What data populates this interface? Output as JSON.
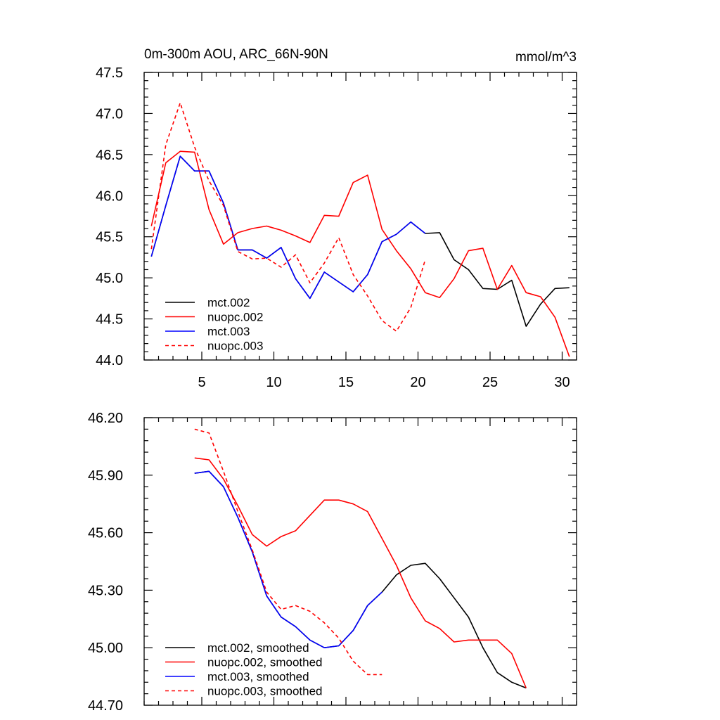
{
  "chart_data": [
    {
      "type": "line",
      "title": "0m-300m AOU, ARC_66N-90N",
      "units": "mmol/m^3",
      "xlim": [
        1,
        31
      ],
      "ylim": [
        44.0,
        47.5
      ],
      "x_major_ticks": [
        5,
        10,
        15,
        20,
        25,
        30
      ],
      "x_tick_labels": [
        "5",
        "10",
        "15",
        "20",
        "25",
        "30"
      ],
      "y_major_ticks": [
        44.0,
        44.5,
        45.0,
        45.5,
        46.0,
        46.5,
        47.0,
        47.5
      ],
      "y_tick_labels": [
        "44.0",
        "44.5",
        "45.0",
        "45.5",
        "46.0",
        "46.5",
        "47.0",
        "47.5"
      ],
      "legend_position": "bottom-left",
      "series": [
        {
          "name": "mct.002",
          "color": "#000000",
          "dash": "solid",
          "x": [
            1.5,
            2.5,
            3.5,
            4.5,
            5.5,
            6.5,
            7.5,
            8.5,
            9.5,
            10.5,
            11.5,
            12.5,
            13.5,
            14.5,
            15.5,
            16.5,
            17.5,
            18.5,
            19.5,
            20.5,
            21.5,
            22.5,
            23.5,
            24.5,
            25.5,
            26.5,
            27.5,
            28.5,
            29.5,
            30.5
          ],
          "values": [
            45.26,
            45.88,
            46.48,
            46.3,
            46.3,
            45.91,
            45.34,
            45.34,
            45.24,
            45.37,
            44.99,
            44.75,
            45.07,
            44.95,
            44.83,
            45.04,
            45.44,
            45.53,
            45.68,
            45.54,
            45.55,
            45.22,
            45.1,
            44.87,
            44.86,
            44.97,
            44.41,
            44.68,
            44.87,
            44.88
          ]
        },
        {
          "name": "nuopc.002",
          "color": "#ff0000",
          "dash": "solid",
          "x": [
            1.5,
            2.5,
            3.5,
            4.5,
            5.5,
            6.5,
            7.5,
            8.5,
            9.5,
            10.5,
            11.5,
            12.5,
            13.5,
            14.5,
            15.5,
            16.5,
            17.5,
            18.5,
            19.5,
            20.5,
            21.5,
            22.5,
            23.5,
            24.5,
            25.5,
            26.5,
            27.5,
            28.5,
            29.5,
            30.5
          ],
          "values": [
            45.63,
            46.4,
            46.54,
            46.53,
            45.83,
            45.41,
            45.55,
            45.6,
            45.63,
            45.58,
            45.51,
            45.43,
            45.76,
            45.75,
            46.16,
            46.25,
            45.59,
            45.33,
            45.11,
            44.82,
            44.76,
            44.99,
            45.33,
            45.36,
            44.86,
            45.15,
            44.82,
            44.77,
            44.52,
            44.04
          ]
        },
        {
          "name": "mct.003",
          "color": "#0000ff",
          "dash": "solid",
          "x": [
            1.5,
            2.5,
            3.5,
            4.5,
            5.5,
            6.5,
            7.5,
            8.5,
            9.5,
            10.5,
            11.5,
            12.5,
            13.5,
            14.5,
            15.5,
            16.5,
            17.5,
            18.5,
            19.5,
            20.5
          ],
          "values": [
            45.26,
            45.88,
            46.48,
            46.3,
            46.3,
            45.91,
            45.34,
            45.34,
            45.24,
            45.37,
            44.99,
            44.75,
            45.07,
            44.95,
            44.83,
            45.04,
            45.44,
            45.53,
            45.68,
            45.54
          ]
        },
        {
          "name": "nuopc.003",
          "color": "#ff0000",
          "dash": "dashed",
          "x": [
            1.5,
            2.5,
            3.5,
            4.5,
            5.5,
            6.5,
            7.5,
            8.5,
            9.5,
            10.5,
            11.5,
            12.5,
            13.5,
            14.5,
            15.5,
            16.5,
            17.5,
            18.5,
            19.5,
            20.5
          ],
          "values": [
            45.35,
            46.62,
            47.13,
            46.59,
            46.18,
            45.88,
            45.32,
            45.23,
            45.24,
            45.13,
            45.28,
            44.94,
            45.18,
            45.49,
            45.04,
            44.78,
            44.48,
            44.35,
            44.64,
            45.22
          ]
        }
      ]
    },
    {
      "type": "line",
      "xlim": [
        1,
        31
      ],
      "ylim": [
        44.7,
        46.2
      ],
      "x_major_ticks": [
        5,
        10,
        15,
        20,
        25,
        30
      ],
      "y_major_ticks": [
        44.7,
        45.0,
        45.3,
        45.6,
        45.9,
        46.2
      ],
      "y_tick_labels": [
        "44.70",
        "45.00",
        "45.30",
        "45.60",
        "45.90",
        "46.20"
      ],
      "legend_position": "bottom-left",
      "series": [
        {
          "name": "mct.002, smoothed",
          "color": "#000000",
          "dash": "solid",
          "x": [
            4.5,
            5.5,
            6.5,
            7.5,
            8.5,
            9.5,
            10.5,
            11.5,
            12.5,
            13.5,
            14.5,
            15.5,
            16.5,
            17.5,
            18.5,
            19.5,
            20.5,
            21.5,
            22.5,
            23.5,
            24.5,
            25.5,
            26.5,
            27.5
          ],
          "values": [
            45.91,
            45.92,
            45.84,
            45.68,
            45.5,
            45.27,
            45.16,
            45.11,
            45.04,
            45.0,
            45.01,
            45.09,
            45.22,
            45.29,
            45.38,
            45.43,
            45.44,
            45.36,
            45.26,
            45.16,
            45.0,
            44.87,
            44.82,
            44.79
          ]
        },
        {
          "name": "nuopc.002, smoothed",
          "color": "#ff0000",
          "dash": "solid",
          "x": [
            4.5,
            5.5,
            6.5,
            7.5,
            8.5,
            9.5,
            10.5,
            11.5,
            12.5,
            13.5,
            14.5,
            15.5,
            16.5,
            17.5,
            18.5,
            19.5,
            20.5,
            21.5,
            22.5,
            23.5,
            24.5,
            25.5,
            26.5,
            27.5
          ],
          "values": [
            45.99,
            45.98,
            45.88,
            45.74,
            45.59,
            45.53,
            45.58,
            45.61,
            45.69,
            45.77,
            45.77,
            45.75,
            45.71,
            45.57,
            45.43,
            45.26,
            45.14,
            45.1,
            45.03,
            45.04,
            45.04,
            45.04,
            44.97,
            44.79
          ]
        },
        {
          "name": "mct.003, smoothed",
          "color": "#0000ff",
          "dash": "solid",
          "x": [
            4.5,
            5.5,
            6.5,
            7.5,
            8.5,
            9.5,
            10.5,
            11.5,
            12.5,
            13.5,
            14.5,
            15.5,
            16.5,
            17.5
          ],
          "values": [
            45.91,
            45.92,
            45.84,
            45.68,
            45.5,
            45.27,
            45.16,
            45.11,
            45.04,
            45.0,
            45.01,
            45.09,
            45.22,
            45.29
          ]
        },
        {
          "name": "nuopc.003, smoothed",
          "color": "#ff0000",
          "dash": "dashed",
          "x": [
            4.5,
            5.5,
            6.5,
            7.5,
            8.5,
            9.5,
            10.5,
            11.5,
            12.5,
            13.5,
            14.5,
            15.5,
            16.5,
            17.5
          ],
          "values": [
            46.14,
            46.12,
            45.92,
            45.71,
            45.51,
            45.29,
            45.2,
            45.22,
            45.19,
            45.13,
            45.05,
            44.93,
            44.86,
            44.86
          ]
        }
      ]
    }
  ]
}
